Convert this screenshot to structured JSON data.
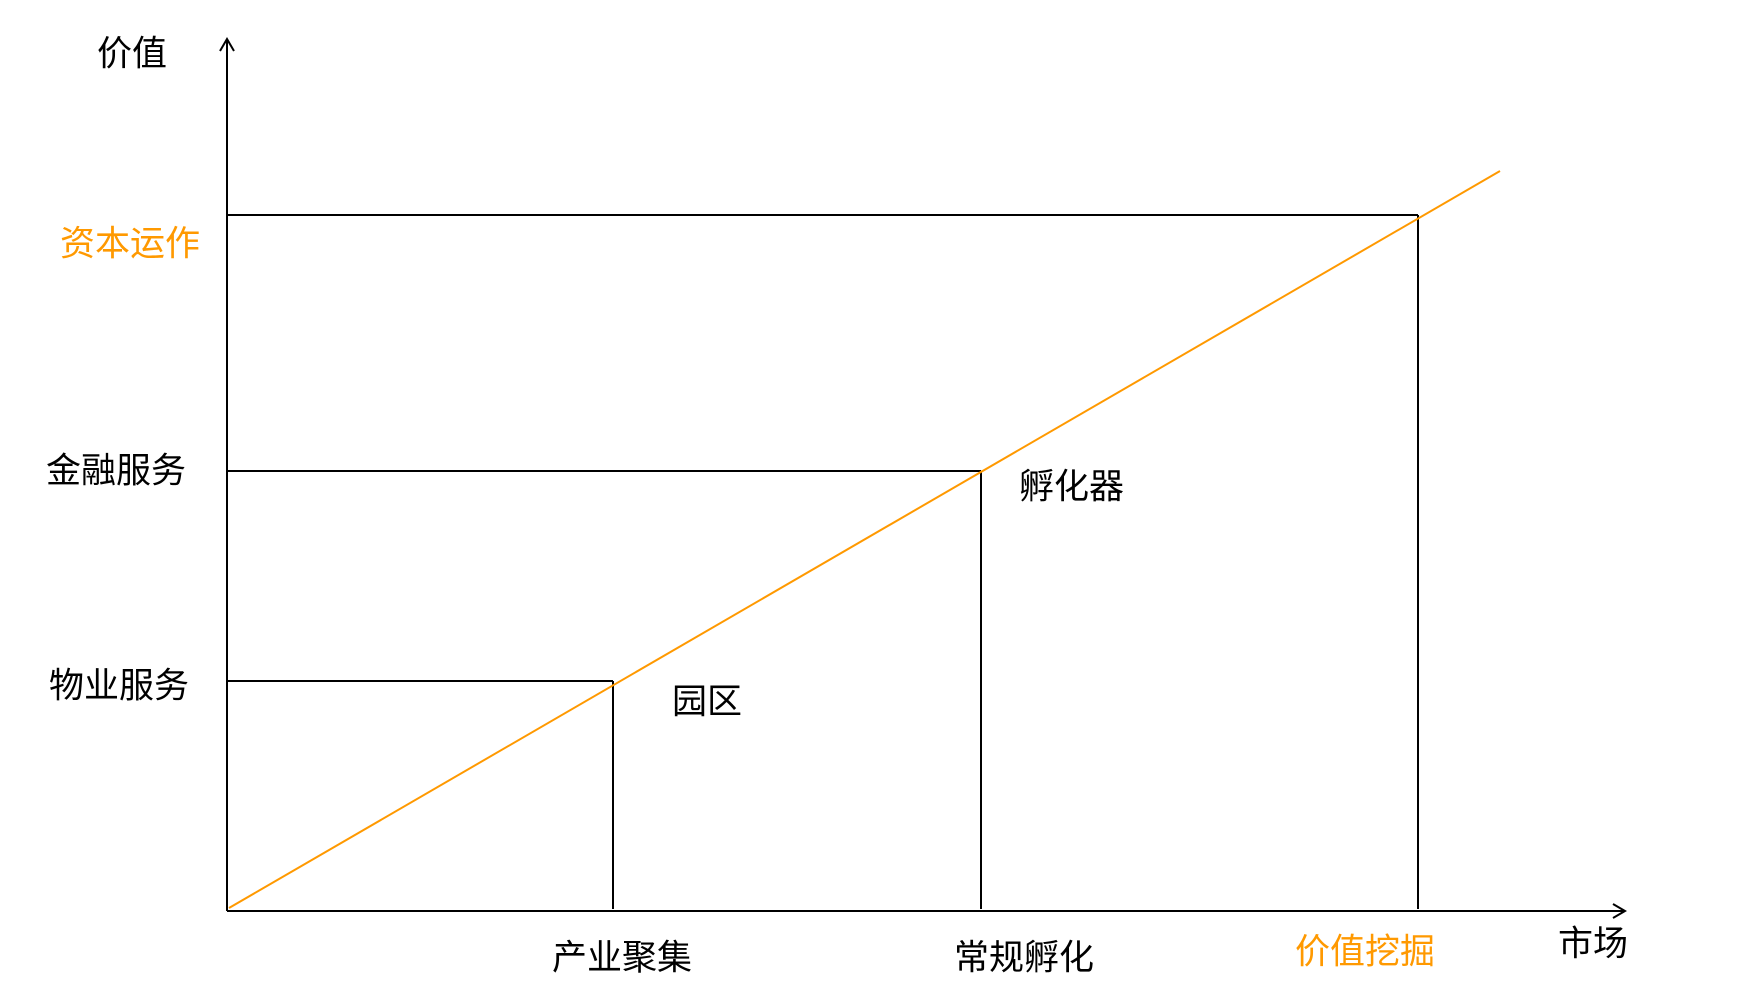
{
  "axes": {
    "y_label": "价值",
    "x_label": "市场"
  },
  "y_levels": [
    {
      "label": "物业服务",
      "highlight": false
    },
    {
      "label": "金融服务",
      "highlight": false
    },
    {
      "label": "资本运作",
      "highlight": true
    }
  ],
  "x_stages": [
    {
      "label": "产业聚集",
      "highlight": false
    },
    {
      "label": "常规孵化",
      "highlight": false
    },
    {
      "label": "价值挖掘",
      "highlight": true
    }
  ],
  "annotations": [
    "园区",
    "孵化器"
  ],
  "colors": {
    "axis": "#000000",
    "trend_line": "#FF9900",
    "highlight_text": "#FF9900"
  }
}
